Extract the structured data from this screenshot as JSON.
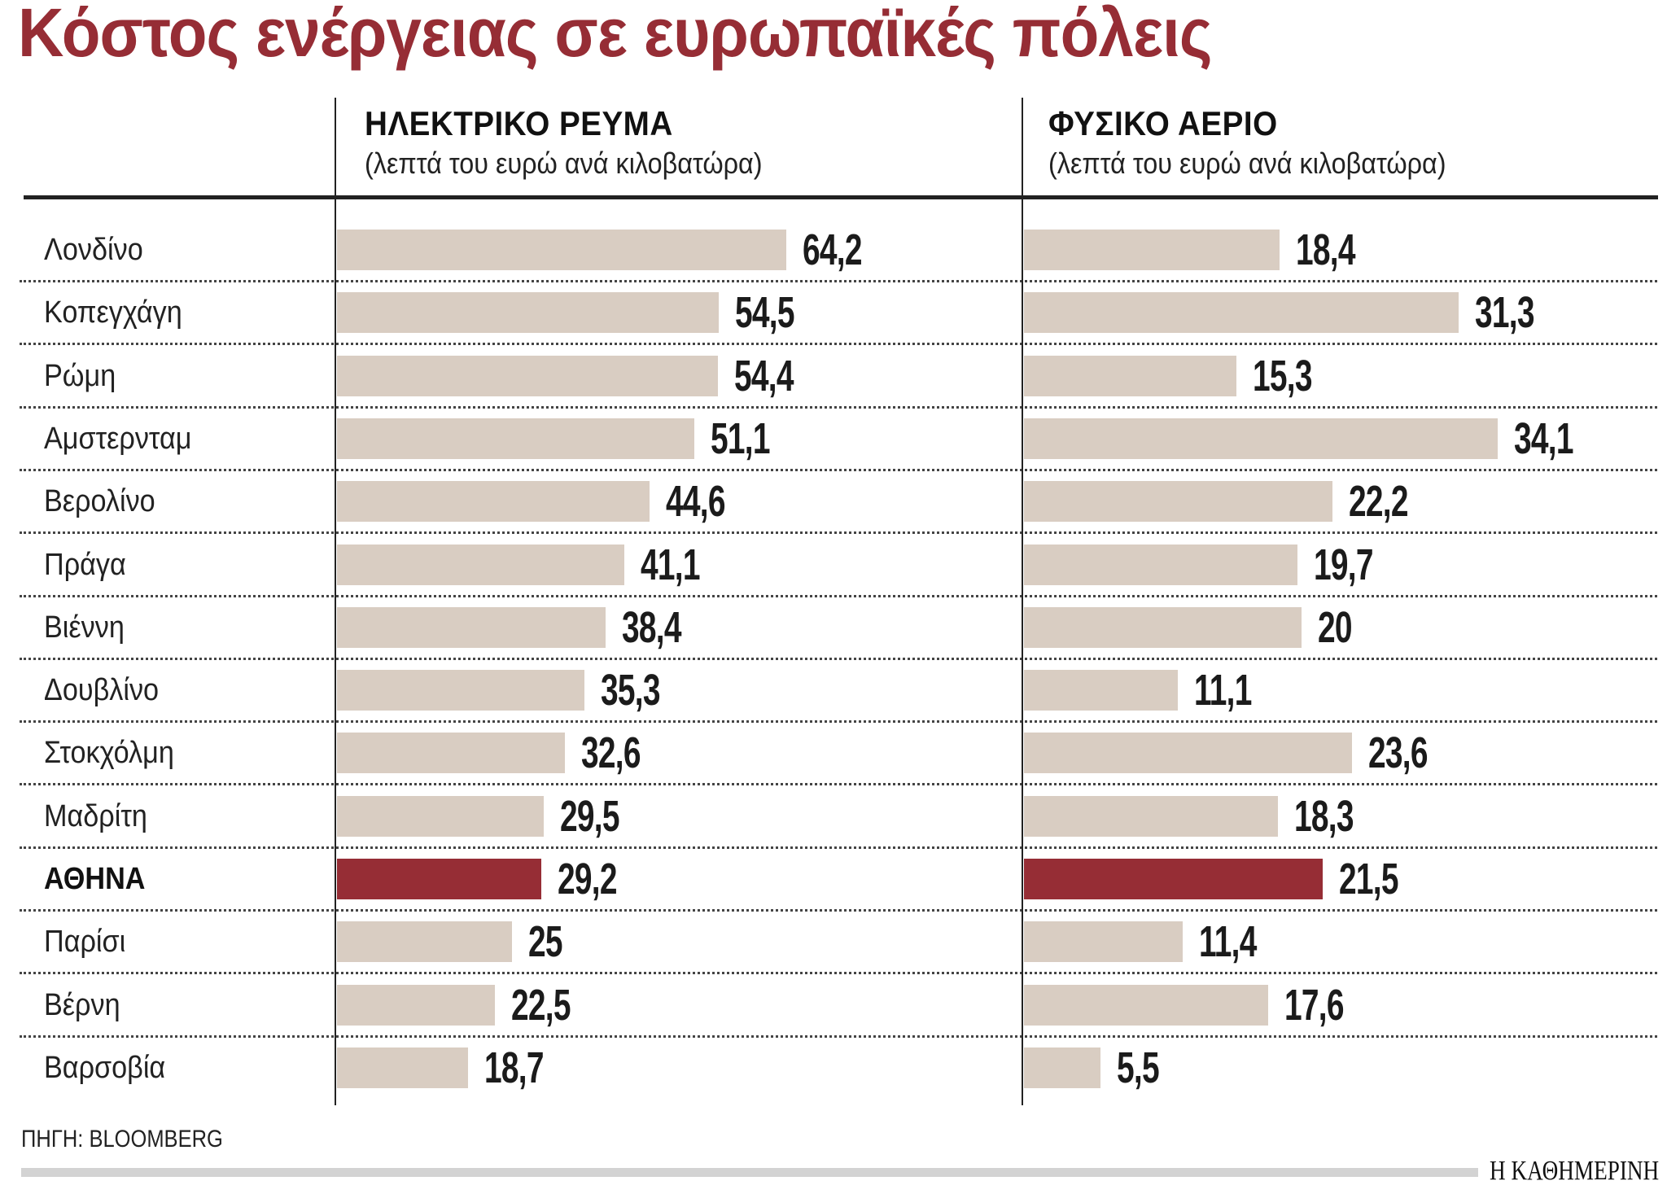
{
  "title": "Κόστος ενέργειας σε ευρωπαϊκές πόλεις",
  "columns": [
    {
      "heading": "ΗΛΕΚΤΡΙΚΟ ΡΕΥΜΑ",
      "unit": "(λεπτά του ευρώ ανά κιλοβατώρα)"
    },
    {
      "heading": "ΦΥΣΙΚΟ ΑΕΡΙΟ",
      "unit": "(λεπτά του ευρώ ανά κιλοβατώρα)"
    }
  ],
  "rows": [
    {
      "city": "Λονδίνο",
      "electricity": "64,2",
      "gas": "18,4"
    },
    {
      "city": "Κοπεγχάγη",
      "electricity": "54,5",
      "gas": "31,3"
    },
    {
      "city": "Ρώμη",
      "electricity": "54,4",
      "gas": "15,3"
    },
    {
      "city": "Αμστερνταμ",
      "electricity": "51,1",
      "gas": "34,1"
    },
    {
      "city": "Βερολίνο",
      "electricity": "44,6",
      "gas": "22,2"
    },
    {
      "city": "Πράγα",
      "electricity": "41,1",
      "gas": "19,7"
    },
    {
      "city": "Βιέννη",
      "electricity": "38,4",
      "gas": "20"
    },
    {
      "city": "Δουβλίνο",
      "electricity": "35,3",
      "gas": "11,1"
    },
    {
      "city": "Στοκχόλμη",
      "electricity": "32,6",
      "gas": "23,6"
    },
    {
      "city": "Μαδρίτη",
      "electricity": "29,5",
      "gas": "18,3"
    },
    {
      "city": "ΑΘΗΝΑ",
      "electricity": "29,2",
      "gas": "21,5",
      "highlight": true
    },
    {
      "city": "Παρίσι",
      "electricity": "25",
      "gas": "11,4"
    },
    {
      "city": "Βέρνη",
      "electricity": "22,5",
      "gas": "17,6"
    },
    {
      "city": "Βαρσοβία",
      "electricity": "18,7",
      "gas": "5,5"
    }
  ],
  "colors": {
    "bar": "#d9cdc2",
    "highlight": "#962d35",
    "title": "#962d35"
  },
  "footer": {
    "source": "ΠΗΓΗ: BLOOMBERG",
    "brand": "Η ΚΑΘΗΜΕΡΙΝΗ"
  },
  "chart_data": [
    {
      "type": "bar",
      "orientation": "horizontal",
      "title": "Κόστος ενέργειας σε ευρωπαϊκές πόλεις — ΗΛΕΚΤΡΙΚΟ ΡΕΥΜΑ",
      "xlabel": "λεπτά του ευρώ ανά κιλοβατώρα",
      "ylabel": "",
      "categories": [
        "Λονδίνο",
        "Κοπεγχάγη",
        "Ρώμη",
        "Αμστερνταμ",
        "Βερολίνο",
        "Πράγα",
        "Βιέννη",
        "Δουβλίνο",
        "Στοκχόλμη",
        "Μαδρίτη",
        "ΑΘΗΝΑ",
        "Παρίσι",
        "Βέρνη",
        "Βαρσοβία"
      ],
      "values": [
        64.2,
        54.5,
        54.4,
        51.1,
        44.6,
        41.1,
        38.4,
        35.3,
        32.6,
        29.5,
        29.2,
        25,
        22.5,
        18.7
      ],
      "highlight": "ΑΘΗΝΑ",
      "grid": false,
      "legend": "none"
    },
    {
      "type": "bar",
      "orientation": "horizontal",
      "title": "Κόστος ενέργειας σε ευρωπαϊκές πόλεις — ΦΥΣΙΚΟ ΑΕΡΙΟ",
      "xlabel": "λεπτά του ευρώ ανά κιλοβατώρα",
      "ylabel": "",
      "categories": [
        "Λονδίνο",
        "Κοπεγχάγη",
        "Ρώμη",
        "Αμστερνταμ",
        "Βερολίνο",
        "Πράγα",
        "Βιέννη",
        "Δουβλίνο",
        "Στοκχόλμη",
        "Μαδρίτη",
        "ΑΘΗΝΑ",
        "Παρίσι",
        "Βέρνη",
        "Βαρσοβία"
      ],
      "values": [
        18.4,
        31.3,
        15.3,
        34.1,
        22.2,
        19.7,
        20,
        11.1,
        23.6,
        18.3,
        21.5,
        11.4,
        17.6,
        5.5
      ],
      "highlight": "ΑΘΗΝΑ",
      "grid": false,
      "legend": "none"
    }
  ]
}
